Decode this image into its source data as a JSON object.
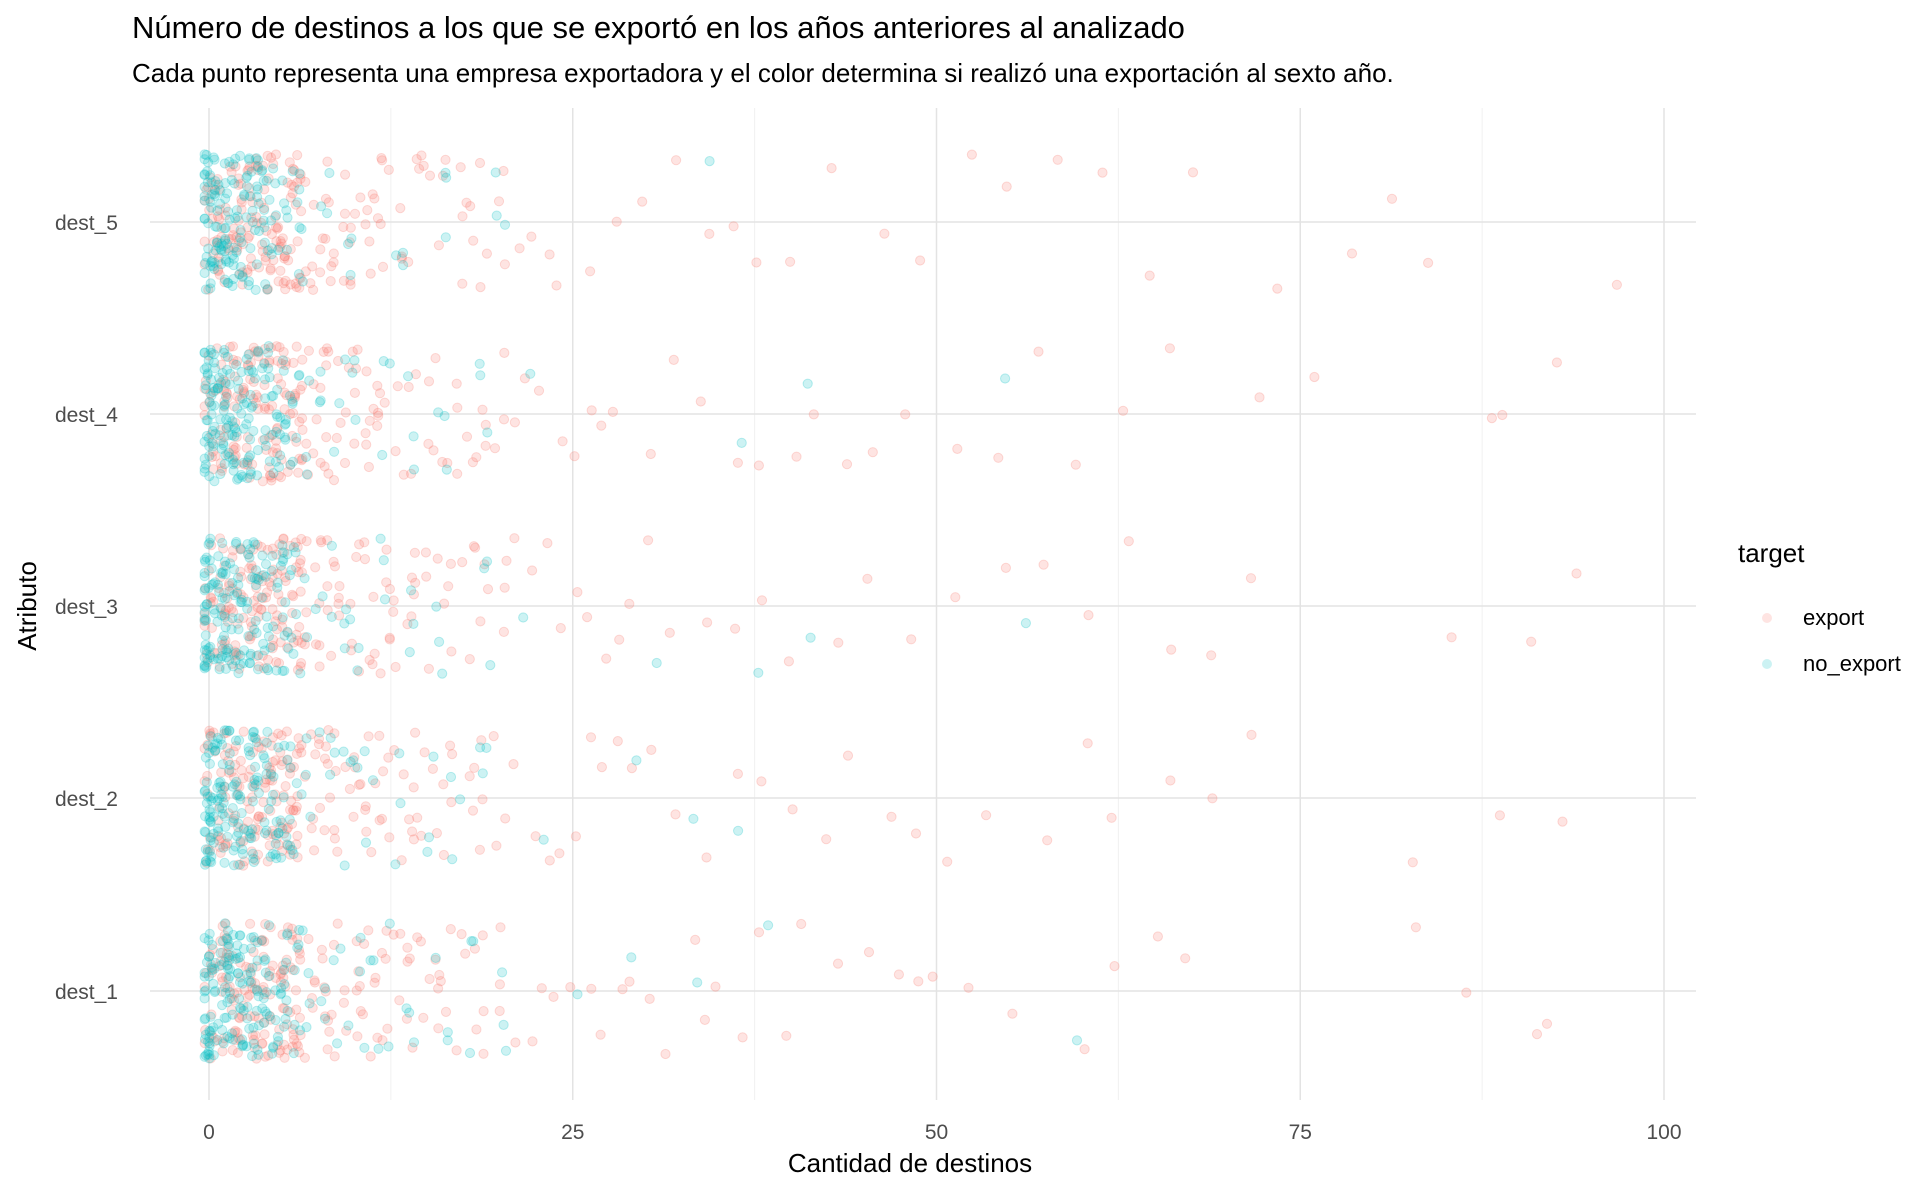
{
  "chart_data": {
    "type": "scatter",
    "title": "Número de destinos a los que se exportó en los años anteriores al analizado",
    "subtitle": "Cada punto representa una empresa exportadora y el color determina si realizó una exportación al sexto año.",
    "xlabel": "Cantidad de destinos",
    "ylabel": "Atributo",
    "xlim": [
      -0.5,
      102
    ],
    "x_ticks": [
      0,
      25,
      50,
      75,
      100
    ],
    "categories": [
      "dest_1",
      "dest_2",
      "dest_3",
      "dest_4",
      "dest_5"
    ],
    "jitter": true,
    "point_alpha": 0.2,
    "grid": true,
    "legend": {
      "title": "target",
      "position": "right",
      "entries": [
        "export",
        "no_export"
      ]
    },
    "colors": {
      "export": "#F8766D",
      "no_export": "#00BFC4"
    },
    "series": [
      {
        "name": "export",
        "points_by_category": {
          "dest_1": [
            0,
            0,
            1,
            1,
            1,
            2,
            2,
            2,
            3,
            3,
            3,
            4,
            4,
            4,
            5,
            5,
            5,
            6,
            6,
            6,
            7,
            7,
            8,
            8,
            8,
            9,
            9,
            10,
            10,
            11,
            11,
            12,
            12,
            13,
            14,
            14,
            15,
            16,
            16,
            17,
            18,
            19,
            20,
            21,
            22,
            23,
            24,
            25,
            26,
            27,
            28,
            29,
            30,
            31,
            33,
            34,
            35,
            37,
            38,
            40,
            41,
            43,
            45,
            47,
            49,
            50,
            52,
            55,
            60,
            62,
            65,
            67,
            83,
            86,
            91,
            92
          ],
          "dest_2": [
            0,
            0,
            1,
            1,
            1,
            2,
            2,
            2,
            3,
            3,
            3,
            4,
            4,
            4,
            5,
            5,
            5,
            6,
            6,
            6,
            7,
            7,
            8,
            8,
            8,
            9,
            9,
            10,
            10,
            11,
            11,
            12,
            12,
            13,
            14,
            14,
            15,
            16,
            17,
            18,
            19,
            20,
            21,
            22,
            23,
            24,
            25,
            26,
            27,
            28,
            29,
            30,
            32,
            34,
            36,
            38,
            40,
            42,
            44,
            47,
            49,
            51,
            53,
            58,
            60,
            62,
            66,
            69,
            72,
            83,
            89,
            93
          ],
          "dest_3": [
            0,
            0,
            1,
            1,
            1,
            2,
            2,
            2,
            3,
            3,
            3,
            4,
            4,
            4,
            5,
            5,
            5,
            6,
            6,
            6,
            7,
            7,
            8,
            8,
            8,
            9,
            9,
            10,
            10,
            11,
            11,
            12,
            12,
            13,
            14,
            14,
            15,
            16,
            17,
            18,
            19,
            20,
            21,
            22,
            23,
            24,
            25,
            26,
            27,
            28,
            29,
            30,
            32,
            34,
            36,
            38,
            40,
            43,
            45,
            48,
            51,
            55,
            57,
            60,
            63,
            66,
            69,
            72,
            85,
            91,
            94
          ],
          "dest_4": [
            0,
            0,
            1,
            1,
            1,
            2,
            2,
            2,
            3,
            3,
            3,
            4,
            4,
            4,
            5,
            5,
            5,
            6,
            6,
            6,
            7,
            7,
            8,
            8,
            8,
            9,
            9,
            10,
            10,
            11,
            11,
            12,
            12,
            13,
            14,
            15,
            16,
            17,
            18,
            19,
            20,
            21,
            22,
            23,
            24,
            25,
            26,
            27,
            28,
            30,
            32,
            34,
            36,
            38,
            40,
            42,
            44,
            46,
            48,
            51,
            54,
            57,
            60,
            63,
            66,
            72,
            76,
            88,
            89,
            93
          ],
          "dest_5": [
            0,
            0,
            1,
            1,
            1,
            2,
            2,
            2,
            3,
            3,
            3,
            4,
            4,
            4,
            5,
            5,
            5,
            6,
            6,
            6,
            7,
            7,
            8,
            8,
            8,
            9,
            9,
            10,
            10,
            11,
            11,
            12,
            12,
            13,
            14,
            15,
            16,
            17,
            18,
            19,
            20,
            21,
            22,
            23,
            24,
            26,
            28,
            30,
            32,
            34,
            36,
            38,
            40,
            43,
            46,
            49,
            52,
            55,
            58,
            61,
            65,
            68,
            73,
            79,
            81,
            84,
            97
          ]
        }
      },
      {
        "name": "no_export",
        "points_by_category": {
          "dest_1": [
            0,
            0,
            0,
            0,
            0,
            1,
            1,
            1,
            1,
            2,
            2,
            2,
            3,
            3,
            3,
            4,
            4,
            5,
            5,
            6,
            7,
            8,
            9,
            10,
            11,
            12,
            14,
            16,
            18,
            20,
            25,
            29,
            34,
            38,
            60
          ],
          "dest_2": [
            0,
            0,
            0,
            0,
            0,
            1,
            1,
            1,
            1,
            2,
            2,
            2,
            3,
            3,
            3,
            4,
            4,
            5,
            5,
            6,
            7,
            8,
            9,
            10,
            11,
            13,
            15,
            17,
            19,
            23,
            29,
            33,
            36
          ],
          "dest_3": [
            0,
            0,
            0,
            0,
            0,
            1,
            1,
            1,
            1,
            2,
            2,
            2,
            3,
            3,
            3,
            4,
            4,
            5,
            5,
            6,
            7,
            8,
            9,
            10,
            12,
            14,
            16,
            19,
            22,
            31,
            38,
            41,
            56
          ],
          "dest_4": [
            0,
            0,
            0,
            0,
            0,
            1,
            1,
            1,
            1,
            2,
            2,
            2,
            3,
            3,
            3,
            4,
            4,
            5,
            5,
            6,
            7,
            8,
            9,
            10,
            12,
            14,
            16,
            19,
            22,
            37,
            41,
            55
          ],
          "dest_5": [
            0,
            0,
            0,
            0,
            0,
            1,
            1,
            1,
            1,
            2,
            2,
            2,
            3,
            3,
            3,
            4,
            4,
            5,
            6,
            8,
            10,
            13,
            16,
            20,
            34
          ]
        }
      }
    ]
  }
}
